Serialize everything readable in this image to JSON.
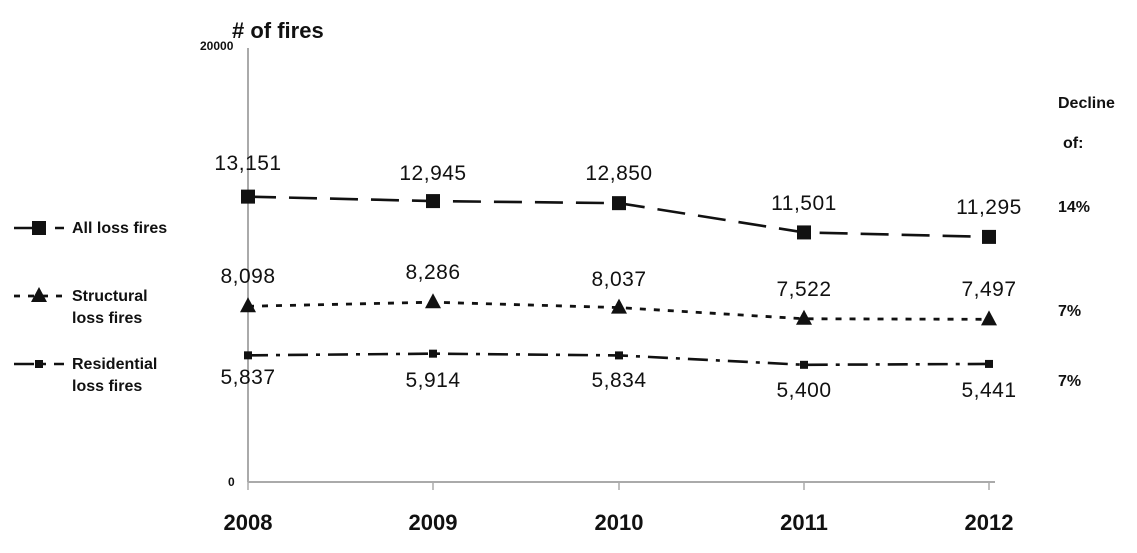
{
  "chart_data": {
    "type": "line",
    "ylabel": "# of fires",
    "ylim": [
      0,
      20000
    ],
    "y_tick_labels": [
      "20000",
      "0"
    ],
    "categories": [
      "2008",
      "2009",
      "2010",
      "2011",
      "2012"
    ],
    "series": [
      {
        "name": "All loss fires",
        "values": [
          13151,
          12945,
          12850,
          11501,
          11295
        ],
        "labels": [
          "13,151",
          "12,945",
          "12,850",
          "11,501",
          "11,295"
        ],
        "marker": "square",
        "dash": "long-dash",
        "decline": "14%"
      },
      {
        "name": "Structural loss fires",
        "values": [
          8098,
          8286,
          8037,
          7522,
          7497
        ],
        "labels": [
          "8,098",
          "8,286",
          "8,037",
          "7,522",
          "7,497"
        ],
        "marker": "triangle",
        "dash": "dotted",
        "decline": "7%"
      },
      {
        "name": "Residential loss fires",
        "values": [
          5837,
          5914,
          5834,
          5400,
          5441
        ],
        "labels": [
          "5,837",
          "5,914",
          "5,834",
          "5,400",
          "5,441"
        ],
        "marker": "small-square",
        "dash": "dash-dot",
        "decline": "7%"
      }
    ],
    "decline_header": [
      "Decline",
      "of:"
    ],
    "grid": false,
    "legend_placement": "left",
    "colors": {
      "line": "#111111",
      "axis": "#aaaaaa",
      "background": "#ffffff"
    }
  }
}
